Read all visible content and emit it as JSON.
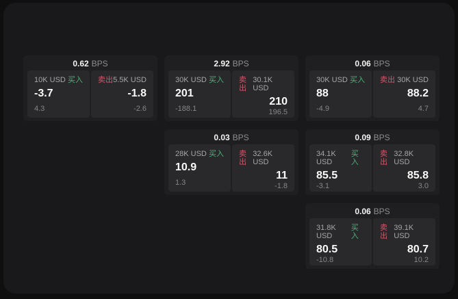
{
  "labels": {
    "buy": "买入",
    "sell": "卖出",
    "bps": "BPS"
  },
  "cards": [
    {
      "bps_value": "0.62",
      "buy": {
        "amount": "10K USD",
        "price": "-3.7",
        "delta": "4.3"
      },
      "sell": {
        "amount": "5.5K USD",
        "price": "-1.8",
        "delta": "-2.6"
      }
    },
    {
      "bps_value": "2.92",
      "buy": {
        "amount": "30K USD",
        "price": "201",
        "delta": "-188.1"
      },
      "sell": {
        "amount": "30.1K USD",
        "price": "210",
        "delta": "196.5"
      }
    },
    {
      "bps_value": "0.06",
      "buy": {
        "amount": "30K USD",
        "price": "88",
        "delta": "-4.9"
      },
      "sell": {
        "amount": "30K USD",
        "price": "88.2",
        "delta": "4.7"
      }
    },
    {
      "bps_value": "0.03",
      "buy": {
        "amount": "28K USD",
        "price": "10.9",
        "delta": "1.3"
      },
      "sell": {
        "amount": "32.6K USD",
        "price": "11",
        "delta": "-1.8"
      }
    },
    {
      "bps_value": "0.09",
      "buy": {
        "amount": "34.1K USD",
        "price": "85.5",
        "delta": "-3.1"
      },
      "sell": {
        "amount": "32.8K USD",
        "price": "85.8",
        "delta": "3.0"
      }
    },
    {
      "bps_value": "0.06",
      "buy": {
        "amount": "31.8K USD",
        "price": "80.5",
        "delta": "-10.8"
      },
      "sell": {
        "amount": "39.1K USD",
        "price": "80.7",
        "delta": "10.2"
      }
    }
  ]
}
